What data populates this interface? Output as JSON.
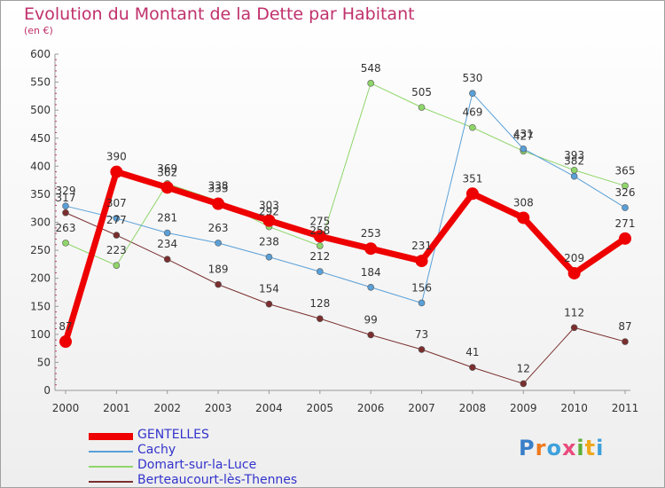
{
  "title": "Evolution du Montant de la Dette par Habitant",
  "unit": "(en €)",
  "brand": {
    "text": "Proxiti",
    "letters": [
      "P",
      "r",
      "o",
      "x",
      "i",
      "t",
      "i"
    ],
    "colors": [
      "#3a7fc8",
      "#ee7a1e",
      "#3fa0dc",
      "#e94b7c",
      "#5cae3a",
      "#f0a81c",
      "#3fa0dc"
    ]
  },
  "chart_data": {
    "type": "line",
    "title": "Evolution du Montant de la Dette par Habitant",
    "ylabel": "(en €)",
    "xlabel": "",
    "ylim": [
      0,
      600
    ],
    "yticks": [
      0,
      50,
      100,
      150,
      200,
      250,
      300,
      350,
      400,
      450,
      500,
      550,
      600
    ],
    "x": [
      "2000",
      "2001",
      "2002",
      "2003",
      "2004",
      "2005",
      "2006",
      "2007",
      "2008",
      "2009",
      "2010",
      "2011"
    ],
    "grid": false,
    "legend_position": "bottom-left",
    "series": [
      {
        "name": "Berteaucourt-lès-Thennes",
        "color": "#7a2e2e",
        "width": 1,
        "values": [
          317,
          277,
          234,
          189,
          154,
          128,
          99,
          73,
          41,
          12,
          112,
          87
        ]
      },
      {
        "name": "Domart-sur-la-Luce",
        "color": "#8fd66a",
        "width": 1,
        "values": [
          263,
          223,
          369,
          338,
          292,
          258,
          548,
          505,
          469,
          427,
          393,
          365
        ]
      },
      {
        "name": "Cachy",
        "color": "#5aa0d8",
        "width": 1,
        "values": [
          329,
          307,
          281,
          263,
          238,
          212,
          184,
          156,
          530,
          431,
          382,
          326
        ]
      },
      {
        "name": "GENTELLES",
        "color": "#ee0000",
        "width": 7,
        "values": [
          87,
          390,
          362,
          333,
          303,
          275,
          253,
          231,
          351,
          308,
          209,
          271
        ]
      }
    ],
    "legend_order": [
      "GENTELLES",
      "Cachy",
      "Domart-sur-la-Luce",
      "Berteaucourt-lès-Thennes"
    ]
  }
}
